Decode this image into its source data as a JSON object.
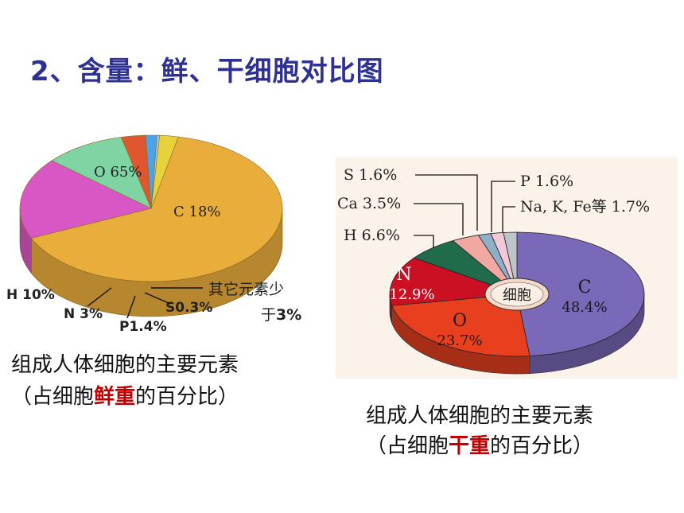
{
  "title": "2、含量：鲜、干细胞对比图",
  "colors": {
    "title": "#2e3192",
    "highlight": "#c00000"
  },
  "chart_data": [
    {
      "type": "pie",
      "title": "",
      "slices": [
        {
          "label": "O 65%",
          "name": "O",
          "value": 65,
          "color": "#e9ad3c"
        },
        {
          "label": "C 18%",
          "name": "C",
          "value": 18,
          "color": "#d957c4"
        },
        {
          "label": "H 10%",
          "name": "H",
          "value": 10,
          "color": "#7fd4a4"
        },
        {
          "label": "N 3%",
          "name": "N",
          "value": 3,
          "color": "#e0562e"
        },
        {
          "label": "P1.4%",
          "name": "P",
          "value": 1.4,
          "color": "#4da3e8"
        },
        {
          "label": "S0.3%",
          "name": "S",
          "value": 0.3,
          "color": "#a8d0f0"
        },
        {
          "label": "其它元素少于3%",
          "name": "其它元素",
          "value": 2.3,
          "color": "#e8d23c"
        }
      ],
      "caption_line1": "组成人体细胞的主要元素",
      "caption_pre": "（占细胞",
      "caption_highlight": "鲜重",
      "caption_post": "的百分比）"
    },
    {
      "type": "pie",
      "title": "",
      "center_label": "细胞",
      "slices": [
        {
          "label": "C",
          "pct": "48.4%",
          "value": 48.4,
          "color": "#7a68b8"
        },
        {
          "label": "O",
          "pct": "23.7%",
          "value": 23.7,
          "color": "#e8401e"
        },
        {
          "label": "N",
          "pct": "12.9%",
          "value": 12.9,
          "color": "#cc1024"
        },
        {
          "label": "H 6.6%",
          "value": 6.6,
          "color": "#1f6b4a"
        },
        {
          "label": "Ca 3.5%",
          "value": 3.5,
          "color": "#f0a8a0"
        },
        {
          "label": "S 1.6%",
          "value": 1.6,
          "color": "#8fb0c8"
        },
        {
          "label": "P 1.6%",
          "value": 1.6,
          "color": "#f0c8d8"
        },
        {
          "label": "Na, K, Fe等 1.7%",
          "value": 1.7,
          "color": "#bfc4c8"
        }
      ],
      "caption_line1": "组成人体细胞的主要元素",
      "caption_pre": "（占细胞",
      "caption_highlight": "干重",
      "caption_post": "的百分比）"
    }
  ]
}
